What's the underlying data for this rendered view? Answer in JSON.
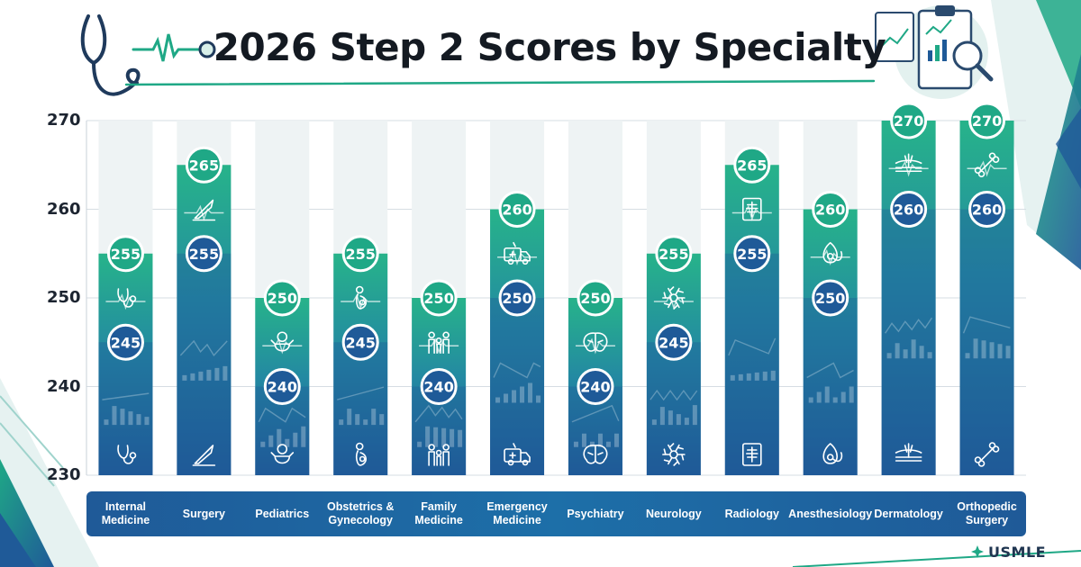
{
  "chart_data": {
    "type": "bar",
    "title": "2026 Step 2 Scores by Specialty",
    "ylim": [
      230,
      270
    ],
    "yticks": [
      230,
      240,
      250,
      260,
      270
    ],
    "grid": true,
    "categories": [
      "Internal\nMedicine",
      "Surgery",
      "Pediatrics",
      "Obstetrics &\nGynecology",
      "Family\nMedicine",
      "Emergency\nMedicine",
      "Psychiatry",
      "Neurology",
      "Radiology",
      "Anesthesiology",
      "Dermatology",
      "Orthopedic\nSurgery"
    ],
    "top_values": [
      255,
      265,
      250,
      255,
      250,
      260,
      250,
      255,
      265,
      260,
      270,
      270
    ],
    "markers": [
      {
        "teal": 255,
        "blue": 245
      },
      {
        "teal": 265,
        "blue": 255
      },
      {
        "teal": 250,
        "blue": 240
      },
      {
        "teal": 255,
        "blue": 245
      },
      {
        "teal": 250,
        "blue": 240
      },
      {
        "teal": 260,
        "blue": 250
      },
      {
        "teal": 250,
        "blue": 240
      },
      {
        "teal": 255,
        "blue": 245
      },
      {
        "teal": 265,
        "blue": 255
      },
      {
        "teal": 260,
        "blue": 250
      },
      {
        "teal": 270,
        "blue": 260
      },
      {
        "teal": 270,
        "blue": 260
      }
    ],
    "icons": [
      "stethoscope-icon",
      "scalpel-icon",
      "baby-icon",
      "pregnancy-icon",
      "family-icon",
      "ambulance-icon",
      "brain-icon",
      "neuron-icon",
      "xray-icon",
      "anesthesia-mask-icon",
      "skin-layers-icon",
      "bone-icon"
    ]
  },
  "brand": {
    "name": "USMLE"
  },
  "colors": {
    "teal": "#1fa886",
    "blue": "#1f5a98",
    "dark": "#141a22"
  }
}
